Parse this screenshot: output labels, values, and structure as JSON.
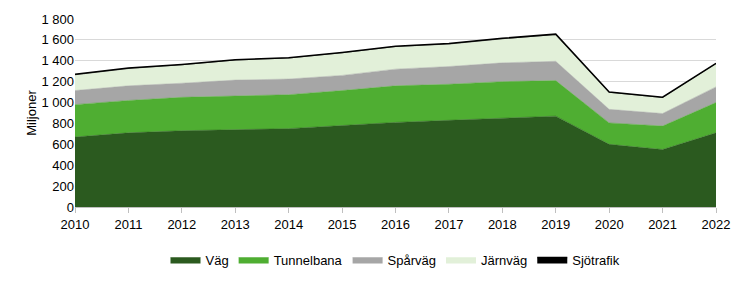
{
  "chart_data": {
    "type": "area",
    "stacked": true,
    "y_label": "Miljoner",
    "categories": [
      "2010",
      "2011",
      "2012",
      "2013",
      "2014",
      "2015",
      "2016",
      "2017",
      "2018",
      "2019",
      "2020",
      "2021",
      "2022"
    ],
    "series": [
      {
        "name": "Väg",
        "color": "#2b5a1f",
        "values": [
          670,
          710,
          730,
          740,
          750,
          780,
          810,
          830,
          850,
          870,
          600,
          550,
          710
        ]
      },
      {
        "name": "Tunnelbana",
        "color": "#4fae32",
        "values": [
          310,
          310,
          320,
          325,
          325,
          335,
          350,
          345,
          350,
          340,
          205,
          225,
          290
        ]
      },
      {
        "name": "Spårväg",
        "color": "#a6a6a6",
        "values": [
          135,
          140,
          135,
          150,
          150,
          145,
          160,
          170,
          180,
          185,
          130,
          120,
          150
        ]
      },
      {
        "name": "Järnväg",
        "color": "#e2f0d9",
        "values": [
          147,
          162,
          172,
          187,
          197,
          212,
          212,
          212,
          227,
          252,
          158,
          148,
          218
        ]
      },
      {
        "name": "Sjötrafik",
        "color": "#000000",
        "values": [
          8,
          8,
          8,
          8,
          8,
          8,
          8,
          8,
          8,
          8,
          8,
          8,
          8
        ]
      }
    ],
    "ylim": [
      0,
      1800
    ],
    "yticks": [
      0,
      200,
      400,
      600,
      800,
      {
        "value": 1000,
        "label": "1 000"
      },
      {
        "value": 1200,
        "label": "1 200"
      },
      {
        "value": 1400,
        "label": "1 400"
      },
      {
        "value": 1600,
        "label": "1 600"
      },
      {
        "value": 1800,
        "label": "1 800"
      }
    ],
    "grid": true,
    "legend": "bottom"
  }
}
